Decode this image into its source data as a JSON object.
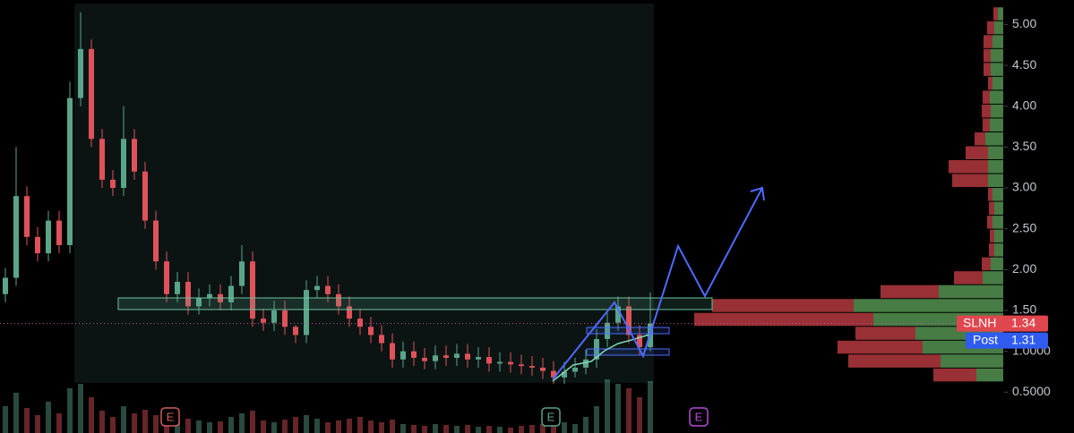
{
  "chart_data": {
    "type": "candlestick",
    "symbol": "SLNH",
    "last_price": 1.34,
    "post_label": "Post",
    "post_price": 1.31,
    "ylim": [
      0,
      5.3
    ],
    "yticks": [
      {
        "value": 5,
        "label": "5.00"
      },
      {
        "value": 4.5,
        "label": "4.50"
      },
      {
        "value": 4,
        "label": "4.00"
      },
      {
        "value": 3.5,
        "label": "3.50"
      },
      {
        "value": 3,
        "label": "3.00"
      },
      {
        "value": 2.5,
        "label": "2.50"
      },
      {
        "value": 2,
        "label": "2.00"
      },
      {
        "value": 1.5,
        "label": "1.50"
      },
      {
        "value": 1,
        "label": "1.0000"
      },
      {
        "value": 0.5,
        "label": "0.5000"
      }
    ],
    "up_color": "#5aa58a",
    "down_color": "#e0525a",
    "open": [
      1.7,
      1.9,
      2.9,
      2.4,
      2.2,
      2.6,
      2.3,
      4.1,
      4.7,
      3.6,
      3.1,
      3.0,
      3.6,
      3.2,
      2.6,
      2.1,
      1.7,
      1.85,
      1.55,
      1.65,
      1.7,
      1.6,
      1.8,
      2.1,
      1.4,
      1.35,
      1.5,
      1.3,
      1.2,
      1.75,
      1.8,
      1.7,
      1.55,
      1.4,
      1.3,
      1.2,
      1.1,
      0.9,
      1.0,
      0.92,
      0.88,
      0.95,
      0.92,
      0.97,
      0.9,
      0.93,
      0.85,
      0.87,
      0.84,
      0.82,
      0.8,
      0.76,
      0.68,
      0.75,
      0.8,
      0.9,
      1.15,
      1.35,
      1.55,
      1.2,
      1.05
    ],
    "high": [
      2.02,
      3.5,
      3.02,
      2.52,
      2.72,
      2.72,
      4.3,
      5.15,
      4.82,
      3.72,
      3.22,
      4.0,
      3.72,
      3.32,
      2.72,
      2.22,
      1.97,
      1.97,
      1.77,
      1.82,
      1.82,
      1.92,
      2.3,
      2.22,
      1.52,
      1.62,
      1.62,
      1.32,
      1.87,
      1.92,
      1.92,
      1.82,
      1.67,
      1.52,
      1.42,
      1.32,
      1.22,
      1.12,
      1.12,
      1.04,
      1.07,
      1.07,
      1.09,
      1.09,
      1.05,
      1.05,
      0.99,
      0.99,
      0.96,
      0.94,
      0.92,
      0.88,
      0.87,
      0.92,
      1.02,
      1.27,
      1.47,
      1.67,
      1.67,
      1.32,
      1.72
    ],
    "low": [
      1.6,
      1.8,
      2.3,
      2.1,
      2.1,
      2.2,
      2.2,
      4.0,
      3.5,
      3.0,
      2.9,
      2.9,
      3.1,
      2.5,
      2.0,
      1.6,
      1.6,
      1.45,
      1.45,
      1.55,
      1.5,
      1.5,
      1.7,
      1.3,
      1.25,
      1.25,
      1.2,
      1.1,
      1.1,
      1.65,
      1.6,
      1.45,
      1.3,
      1.2,
      1.1,
      1.0,
      0.8,
      0.8,
      0.82,
      0.78,
      0.78,
      0.82,
      0.82,
      0.8,
      0.8,
      0.75,
      0.75,
      0.74,
      0.72,
      0.7,
      0.66,
      0.6,
      0.6,
      0.68,
      0.72,
      0.8,
      1.05,
      1.25,
      1.1,
      0.95,
      1.0
    ],
    "close": [
      1.9,
      2.9,
      2.4,
      2.2,
      2.6,
      2.3,
      4.1,
      4.7,
      3.6,
      3.1,
      3.0,
      3.6,
      3.2,
      2.6,
      2.1,
      1.7,
      1.85,
      1.55,
      1.65,
      1.7,
      1.6,
      1.8,
      2.1,
      1.4,
      1.35,
      1.5,
      1.3,
      1.2,
      1.75,
      1.8,
      1.7,
      1.55,
      1.4,
      1.3,
      1.2,
      1.1,
      0.9,
      1.0,
      0.92,
      0.88,
      0.95,
      0.92,
      0.97,
      0.9,
      0.93,
      0.85,
      0.87,
      0.84,
      0.82,
      0.8,
      0.76,
      0.68,
      0.75,
      0.8,
      0.9,
      1.15,
      1.35,
      1.55,
      1.2,
      1.05,
      1.34
    ],
    "volume": [
      30,
      45,
      28,
      20,
      35,
      22,
      50,
      55,
      40,
      25,
      18,
      30,
      22,
      26,
      20,
      18,
      15,
      16,
      14,
      12,
      13,
      18,
      22,
      25,
      14,
      12,
      15,
      18,
      20,
      16,
      12,
      14,
      16,
      18,
      14,
      12,
      15,
      10,
      9,
      8,
      10,
      9,
      8,
      9,
      7,
      8,
      7,
      6,
      8,
      9,
      10,
      14,
      12,
      10,
      18,
      30,
      60,
      55,
      50,
      40,
      58
    ],
    "profile": {
      "bins": [
        0.62,
        0.79,
        0.96,
        1.13,
        1.3,
        1.47,
        1.64,
        1.81,
        1.98,
        2.15,
        2.32,
        2.49,
        2.66,
        2.83,
        3.0,
        3.17,
        3.34,
        3.51,
        3.68,
        3.85,
        4.02,
        4.19,
        4.36,
        4.53,
        4.7,
        4.87,
        5.04,
        5.21
      ],
      "sell": [
        48,
        103,
        95,
        67,
        200,
        158,
        65,
        32,
        10,
        6,
        5,
        6,
        6,
        5,
        40,
        44,
        25,
        12,
        8,
        10,
        8,
        5,
        8,
        8,
        10,
        8,
        5
      ],
      "buy": [
        30,
        70,
        90,
        98,
        145,
        167,
        72,
        23,
        14,
        10,
        10,
        12,
        10,
        12,
        17,
        17,
        17,
        20,
        15,
        14,
        15,
        12,
        14,
        14,
        12,
        10,
        6
      ]
    },
    "events": [
      "E",
      "E",
      "E"
    ]
  }
}
